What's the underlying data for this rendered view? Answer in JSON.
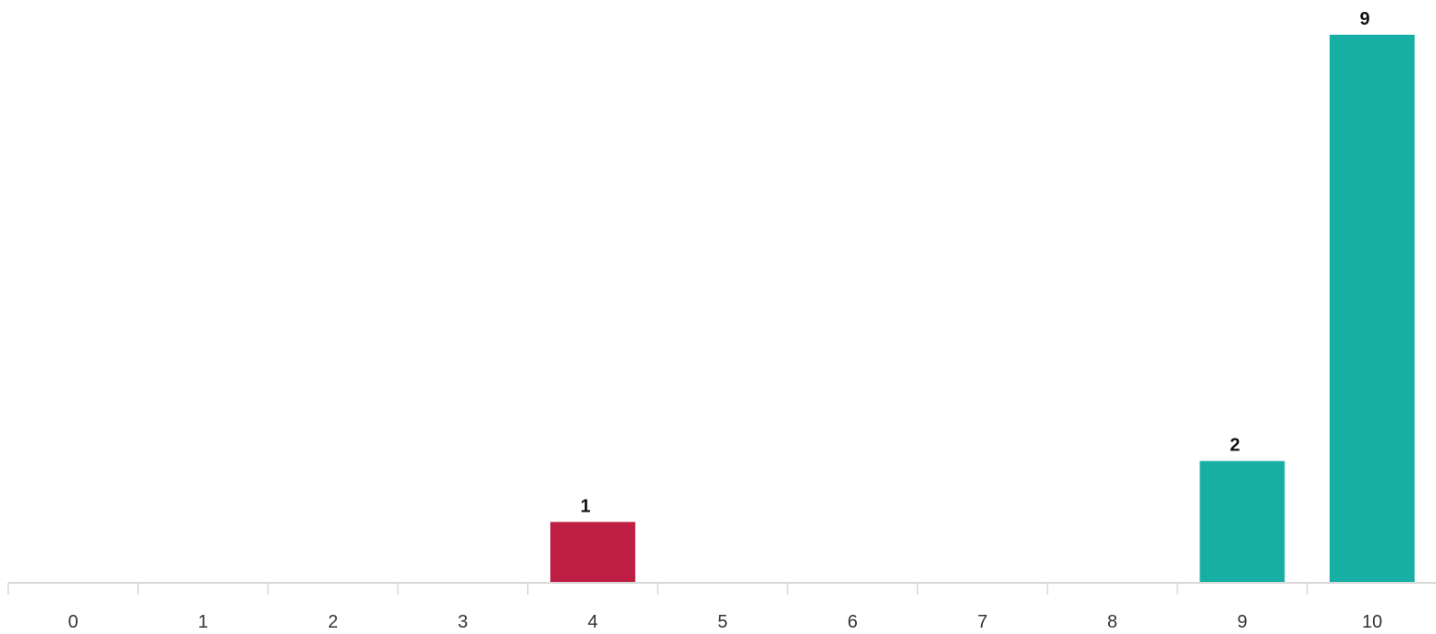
{
  "chart_data": {
    "type": "bar",
    "categories": [
      "0",
      "1",
      "2",
      "3",
      "4",
      "5",
      "6",
      "7",
      "8",
      "9",
      "10"
    ],
    "values": [
      0,
      0,
      0,
      0,
      1,
      0,
      0,
      0,
      0,
      2,
      9
    ],
    "data_labels": [
      "",
      "",
      "",
      "",
      "1",
      "",
      "",
      "",
      "",
      "2",
      "9"
    ],
    "colors": [
      "#be1e44",
      "#be1e44",
      "#be1e44",
      "#be1e44",
      "#be1e44",
      "#be1e44",
      "#be1e44",
      "#f0c400",
      "#f0c400",
      "#17afa4",
      "#17afa4"
    ],
    "title": "",
    "xlabel": "",
    "ylabel": "",
    "ylim": [
      0,
      9
    ],
    "grid": false,
    "legend": "none",
    "axis_color": "#d9d9d9"
  }
}
